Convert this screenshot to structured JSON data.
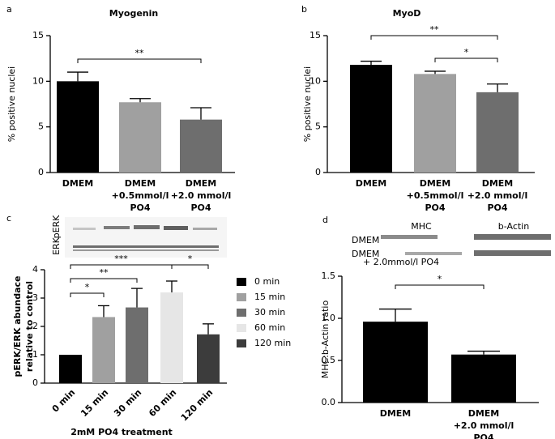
{
  "panel_labels": [
    "a",
    "b",
    "c",
    "d"
  ],
  "chart_data": [
    {
      "type": "bar",
      "title": "Myogenin",
      "y_label": [
        "% positive nuclei"
      ],
      "categories": [
        [
          "DMEM"
        ],
        [
          "DMEM",
          "+0.5mmol/l",
          "PO4"
        ],
        [
          "DMEM",
          "+2.0 mmol/l",
          "PO4"
        ]
      ],
      "values": [
        10.0,
        7.7,
        5.8
      ],
      "errors": [
        1.0,
        0.4,
        1.3
      ],
      "colors": [
        "#000000",
        "#a0a0a0",
        "#6e6e6e"
      ],
      "ylim": [
        0,
        15
      ],
      "yticks": [
        0,
        5,
        10,
        15
      ],
      "annotations": [
        "**"
      ]
    },
    {
      "type": "bar",
      "title": "MyoD",
      "y_label": [
        "% positive nuclei"
      ],
      "categories": [
        [
          "DMEM"
        ],
        [
          "DMEM",
          "+0.5mmol/l",
          "PO4"
        ],
        [
          "DMEM",
          "+2.0 mmol/l",
          "PO4"
        ]
      ],
      "values": [
        11.8,
        10.8,
        8.8
      ],
      "errors": [
        0.4,
        0.3,
        0.9
      ],
      "colors": [
        "#000000",
        "#a0a0a0",
        "#6e6e6e"
      ],
      "ylim": [
        0,
        15
      ],
      "yticks": [
        0,
        5,
        10,
        15
      ],
      "annotations": [
        "**",
        "*"
      ]
    },
    {
      "type": "bar",
      "y_label": [
        "pERK/ERK abundace",
        "relative to control"
      ],
      "x_label": "2mM PO4 treatment",
      "categories": [
        "0 min",
        "15 min",
        "30 min",
        "60 min",
        "120 min"
      ],
      "values": [
        1.0,
        2.33,
        2.67,
        3.2,
        1.72
      ],
      "errors": [
        0,
        0.4,
        0.67,
        0.4,
        0.37
      ],
      "colors": [
        "#000000",
        "#a0a0a0",
        "#6e6e6e",
        "#e6e6e6",
        "#3c3c3c"
      ],
      "ylim": [
        0,
        4
      ],
      "yticks": [
        0,
        1,
        2,
        3,
        4
      ],
      "legend": "right",
      "annotations": [
        "*",
        "**",
        "***",
        "*"
      ],
      "blot_labels": [
        "pERK",
        "ERK"
      ]
    },
    {
      "type": "bar",
      "y_label": [
        "MHC:b-Actin ratio"
      ],
      "categories": [
        [
          "DMEM"
        ],
        [
          "DMEM",
          "+2.0 mmol/l",
          "PO4"
        ]
      ],
      "values": [
        0.96,
        0.57
      ],
      "errors": [
        0.15,
        0.04
      ],
      "colors": [
        "#000000",
        "#000000"
      ],
      "ylim": [
        0,
        1.5
      ],
      "yticks": [
        {
          "value": 0,
          "label": "0.0"
        },
        0.5,
        {
          "value": 1,
          "label": "1.0"
        },
        1.5
      ],
      "annotations": [
        "*"
      ],
      "blot_labels": [
        "MHC",
        "b-Actin",
        "DMEM",
        "DMEM",
        "+ 2.0mmol/l PO4"
      ]
    }
  ]
}
